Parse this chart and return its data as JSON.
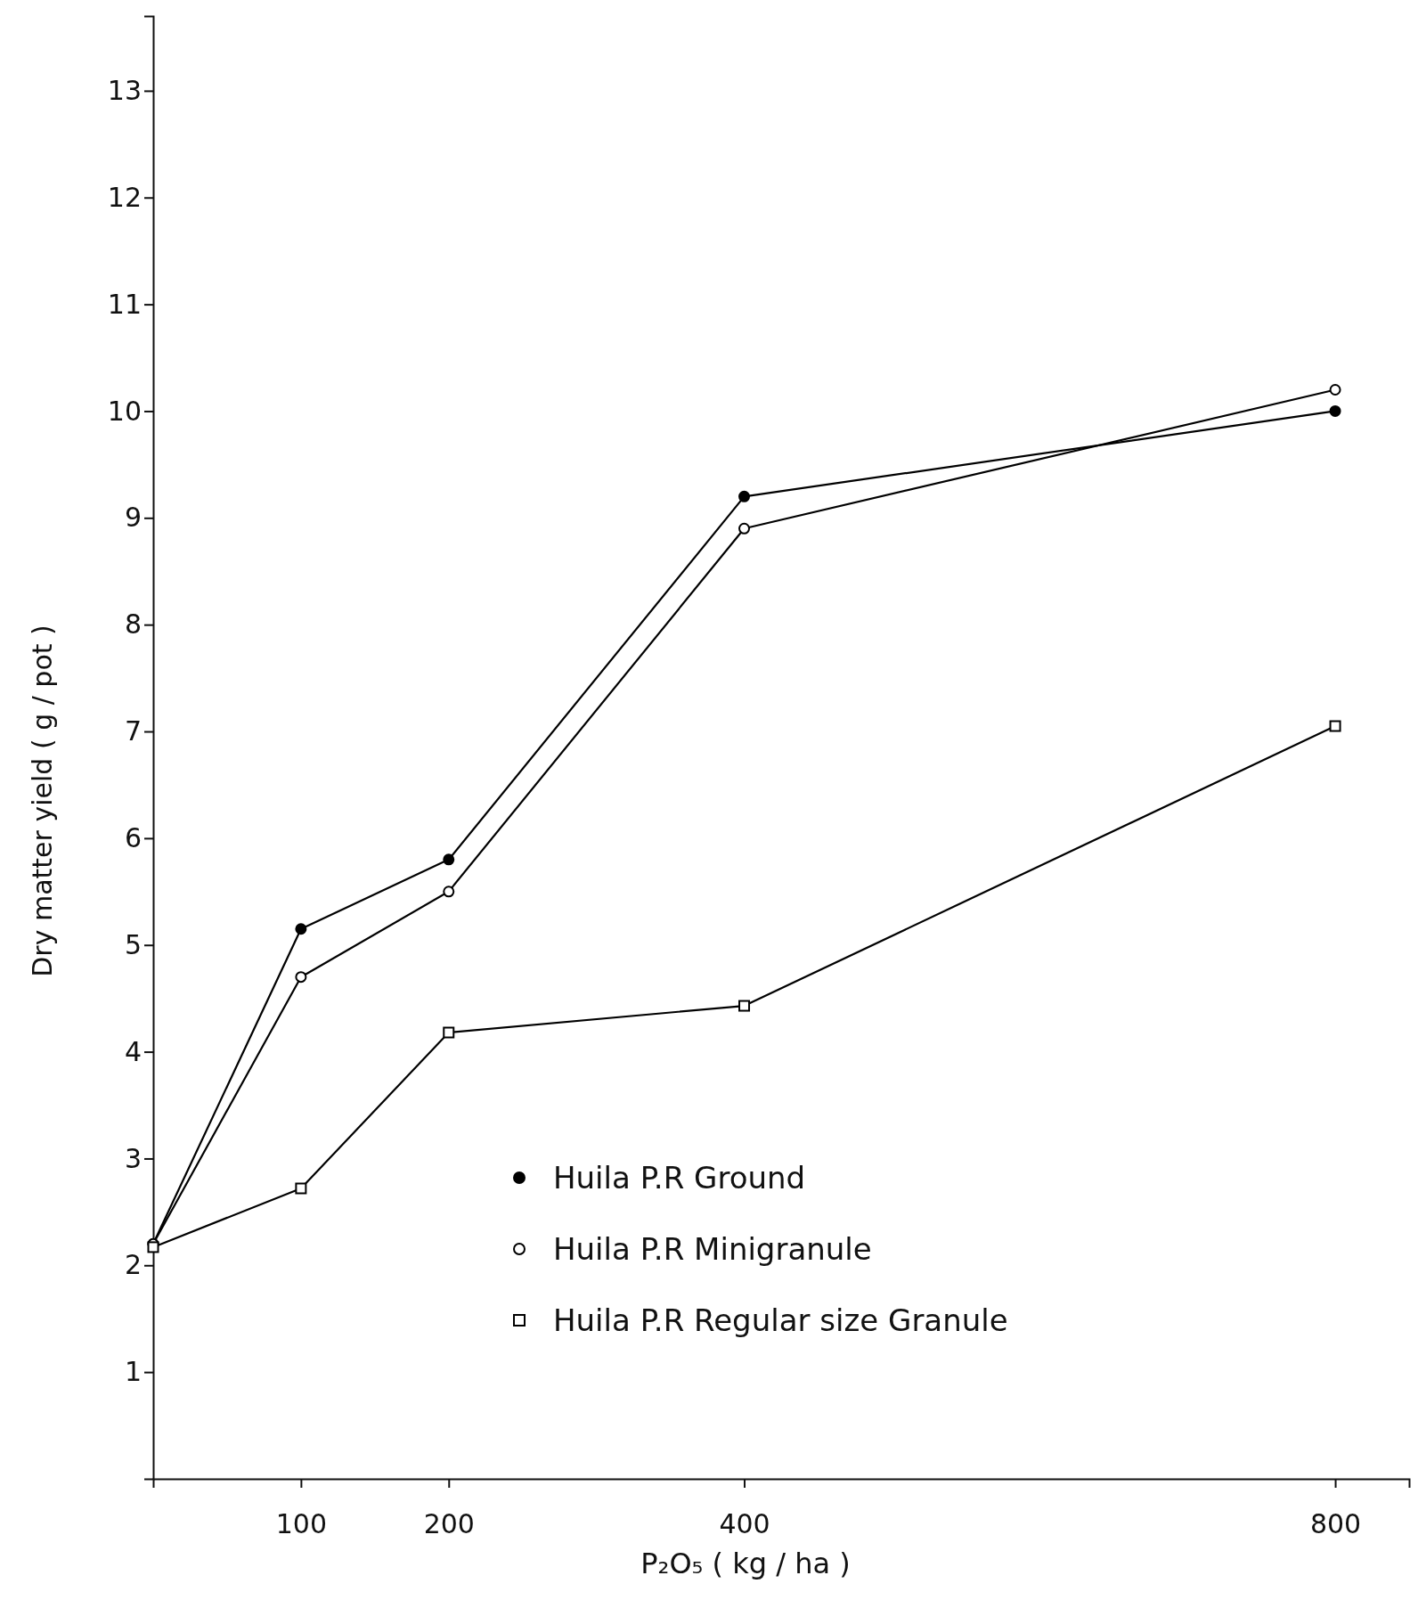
{
  "chart_data": {
    "type": "line",
    "xlabel": "P₂O₅ ( kg / ha )",
    "ylabel": "Dry matter yield ( g / pot )",
    "x": [
      0,
      100,
      200,
      400,
      800
    ],
    "series": [
      {
        "name": "Huila P.R Ground",
        "color": "#000000",
        "marker": "circle",
        "values": [
          2.2,
          5.15,
          5.8,
          9.2,
          10.0
        ]
      },
      {
        "name": "Huila P.R Minigranule",
        "color": "#000000",
        "marker": "circle-open",
        "values": [
          2.2,
          4.7,
          5.5,
          8.9,
          10.2
        ]
      },
      {
        "name": "Huila P.R Regular size Granule",
        "color": "#000000",
        "marker": "square-open",
        "values": [
          2.17,
          2.72,
          4.18,
          4.43,
          7.05
        ]
      }
    ],
    "xlim": [
      0,
      850
    ],
    "xticks": [
      100,
      200,
      400,
      800
    ],
    "ylim": [
      0,
      13.7
    ],
    "yticks": [
      1,
      2,
      3,
      4,
      5,
      6,
      7,
      8,
      9,
      10,
      11,
      {
        "value": 12,
        "label": "12"
      },
      13
    ],
    "grid": false,
    "legend": "bottom",
    "line_style": "solid"
  }
}
